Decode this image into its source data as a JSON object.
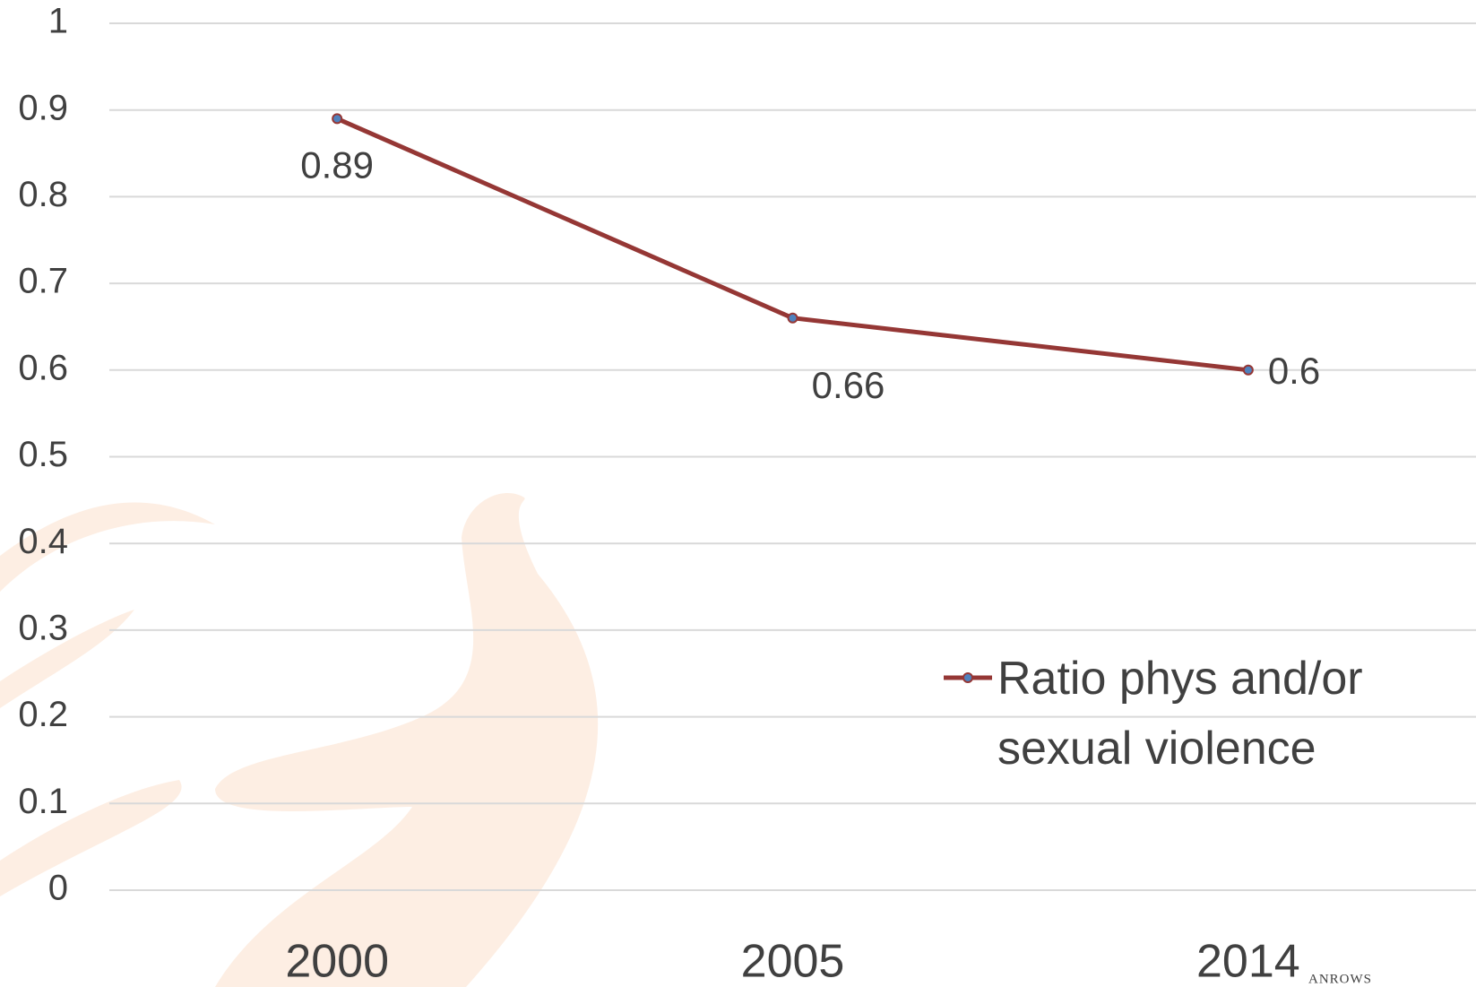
{
  "chart_data": {
    "type": "line",
    "categories": [
      "2000",
      "2005",
      "2014"
    ],
    "series": [
      {
        "name": "Ratio phys and/or sexual violence",
        "color": "#953735",
        "marker_color": "#4f81bd",
        "values": [
          0.89,
          0.66,
          0.6
        ]
      }
    ],
    "ylim": [
      0,
      1
    ],
    "yticks": [
      0,
      0.1,
      0.2,
      0.3,
      0.4,
      0.5,
      0.6,
      0.7,
      0.8,
      0.9,
      1
    ],
    "grid": true,
    "legend": "right",
    "watermark": "ANROWS"
  }
}
